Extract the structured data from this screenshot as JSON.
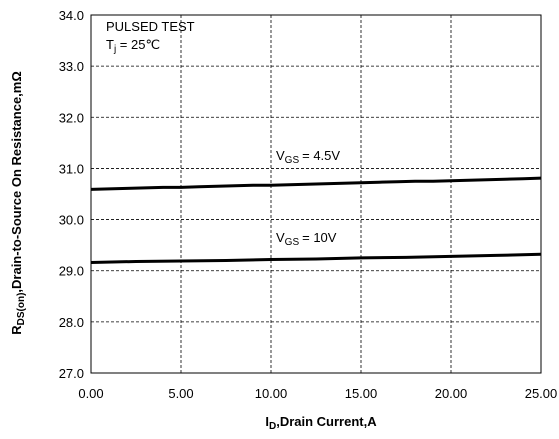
{
  "chart_data": {
    "type": "line",
    "title": "",
    "xlabel": {
      "main": "I",
      "sub": "D",
      "rest": ",Drain Current,A"
    },
    "ylabel": {
      "main": "R",
      "sub": "DS(on)",
      "rest": ",Drain-to-Source On Resistance,mΩ"
    },
    "xlim": [
      0,
      25
    ],
    "ylim": [
      27,
      34
    ],
    "xticks": [
      "0.00",
      "5.00",
      "10.00",
      "15.00",
      "20.00",
      "25.00"
    ],
    "yticks": [
      "27.0",
      "28.0",
      "29.0",
      "30.0",
      "31.0",
      "32.0",
      "33.0",
      "34.0"
    ],
    "grid": true,
    "annotation": {
      "line1": "PULSED TEST",
      "line2_main": "T",
      "line2_sub": "j",
      "line2_rest": " = 25℃"
    },
    "series": [
      {
        "name": "V_GS = 4.5V",
        "label_main": "V",
        "label_sub": "GS",
        "label_rest": "= 4.5V",
        "color": "#000000",
        "x": [
          0,
          1,
          2,
          3,
          4,
          5,
          6,
          7,
          8,
          9,
          10,
          11,
          12,
          13,
          14,
          15,
          16,
          17,
          18,
          19,
          20,
          21,
          22,
          23,
          24,
          25
        ],
        "y": [
          30.59,
          30.6,
          30.61,
          30.62,
          30.63,
          30.63,
          30.64,
          30.65,
          30.66,
          30.67,
          30.67,
          30.68,
          30.69,
          30.7,
          30.71,
          30.72,
          30.73,
          30.74,
          30.75,
          30.75,
          30.76,
          30.77,
          30.78,
          30.79,
          30.8,
          30.81
        ]
      },
      {
        "name": "V_GS = 10V",
        "label_main": "V",
        "label_sub": "GS",
        "label_rest": "= 10V",
        "color": "#000000",
        "x": [
          0,
          2.5,
          5,
          7.5,
          10,
          12.5,
          15,
          17.5,
          20,
          22.5,
          25
        ],
        "y": [
          29.16,
          29.18,
          29.19,
          29.2,
          29.22,
          29.23,
          29.25,
          29.26,
          29.28,
          29.3,
          29.32
        ]
      }
    ]
  }
}
